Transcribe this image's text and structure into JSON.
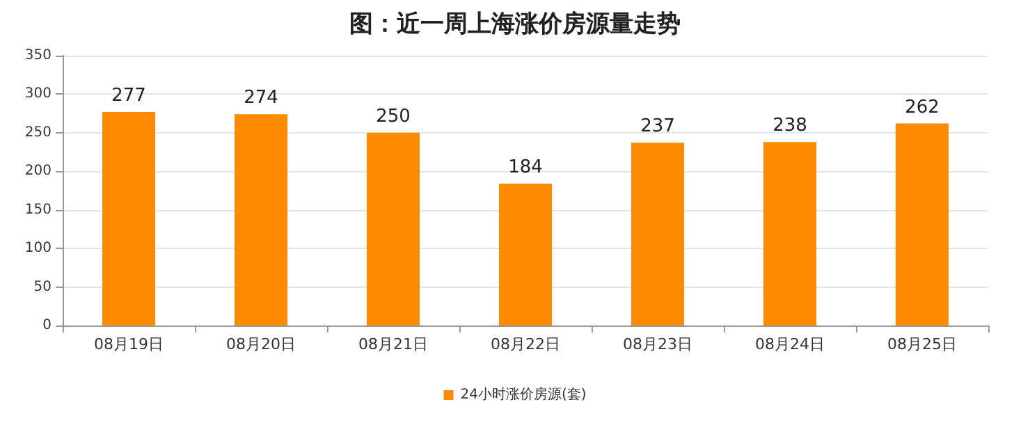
{
  "chart_data": {
    "type": "bar",
    "title": "图：近一周上海涨价房源量走势",
    "categories": [
      "08月19日",
      "08月20日",
      "08月21日",
      "08月22日",
      "08月23日",
      "08月24日",
      "08月25日"
    ],
    "series": [
      {
        "name": "24小时涨价房源(套)",
        "color": "#ff8c00",
        "values": [
          277,
          274,
          250,
          184,
          237,
          238,
          262
        ]
      }
    ],
    "ylim": [
      0,
      350
    ],
    "yticks": [
      0,
      50,
      100,
      150,
      200,
      250,
      300,
      350
    ],
    "grid": "y",
    "legend": "bottom",
    "data_labels": true
  }
}
